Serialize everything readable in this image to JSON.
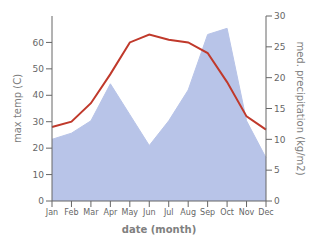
{
  "chart_data": {
    "type": "line",
    "categories": [
      "Jan",
      "Feb",
      "Mar",
      "Apr",
      "May",
      "Jun",
      "Jul",
      "Aug",
      "Sep",
      "Oct",
      "Nov",
      "Dec"
    ],
    "series": [
      {
        "type": "area",
        "axis": "y2",
        "color": "#b8c4e8",
        "values": [
          10,
          11,
          13,
          19,
          14,
          9,
          13,
          18,
          27,
          28,
          13,
          7
        ]
      },
      {
        "type": "line",
        "color": "#c0392b",
        "values": [
          28,
          30,
          37,
          48,
          60,
          63,
          61,
          60,
          56,
          45,
          32,
          27
        ]
      }
    ],
    "xlabel": "date (month)",
    "ylabel": "max temp (C)",
    "y2label": "med. precipitation (kg/m2)",
    "ylim": [
      0,
      70
    ],
    "yticks": [
      0,
      10,
      20,
      30,
      40,
      50,
      60
    ],
    "y2lim": [
      0,
      30
    ],
    "y2ticks": [
      0,
      5,
      10,
      15,
      20,
      25,
      30
    ],
    "grid": false
  }
}
